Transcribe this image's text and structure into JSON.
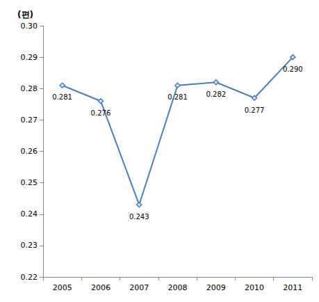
{
  "chart_data": {
    "type": "line",
    "y_label": "(편)",
    "categories": [
      "2005",
      "2006",
      "2007",
      "2008",
      "2009",
      "2010",
      "2011"
    ],
    "values": [
      0.281,
      0.276,
      0.243,
      0.281,
      0.282,
      0.277,
      0.29
    ],
    "value_labels": [
      "0.281",
      "0.276",
      "0.243",
      "0.281",
      "0.282",
      "0.277",
      "0.290"
    ],
    "color": "#4a7ebb",
    "marker": "diamond",
    "line_style": "solid",
    "ylim": [
      0.22,
      0.3
    ],
    "yticks": [
      0.22,
      0.23,
      0.24,
      0.25,
      0.26,
      0.27,
      0.28,
      0.29,
      {
        "value": 0.3,
        "label": "0.30"
      }
    ],
    "grid": false,
    "data_labels": true
  }
}
